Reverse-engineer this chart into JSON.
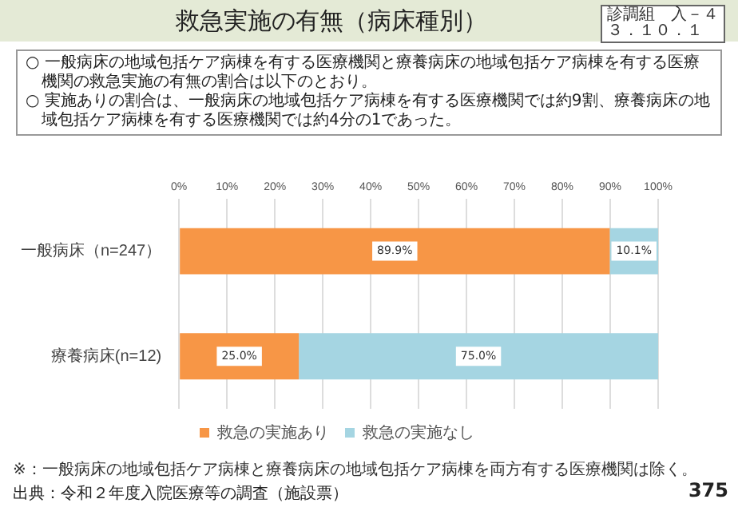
{
  "chart_data": {
    "type": "bar",
    "orientation": "horizontal",
    "stacked": true,
    "title": "救急実施の有無（病床種別）",
    "categories": [
      "一般病床（n=247）",
      "療養病床(n=12)"
    ],
    "series": [
      {
        "name": "救急の実施あり",
        "color": "#f79646",
        "values": [
          89.9,
          25.0
        ],
        "value_labels": [
          "89.9%",
          "25.0%"
        ]
      },
      {
        "name": "救急の実施なし",
        "color": "#a5d5e2",
        "values": [
          10.1,
          75.0
        ],
        "value_labels": [
          "10.1%",
          "75.0%"
        ]
      }
    ],
    "xlim": [
      0,
      100
    ],
    "xticks": [
      {
        "value": 0,
        "label": "0%"
      },
      {
        "value": 10,
        "label": "10%"
      },
      {
        "value": 20,
        "label": "20%"
      },
      {
        "value": 30,
        "label": "30%"
      },
      {
        "value": 40,
        "label": "40%"
      },
      {
        "value": 50,
        "label": "50%"
      },
      {
        "value": 60,
        "label": "60%"
      },
      {
        "value": 70,
        "label": "70%"
      },
      {
        "value": 80,
        "label": "80%"
      },
      {
        "value": 90,
        "label": "90%"
      },
      {
        "value": 100,
        "label": "100%"
      }
    ],
    "grid": "x",
    "legend": "bottom",
    "annotations": [
      "診調組　入－４",
      "３．１０．１",
      "○ 一般病床の地域包括ケア病棟を有する医療機関と療養病床の地域包括ケア病棟を有する医療機関の救急実施の有無の割合は以下のとおり。",
      "○ 実施ありの割合は、一般病床の地域包括ケア病棟を有する医療機関では約9割、療養病床の地域包括ケア病棟を有する医療機関では約4分の1であった。",
      "※：一般病床の地域包括ケア病棟と療養病床の地域包括ケア病棟を両方有する医療機関は除く。",
      "出典：令和２年度入院医療等の調査（施設票）",
      "375"
    ]
  }
}
